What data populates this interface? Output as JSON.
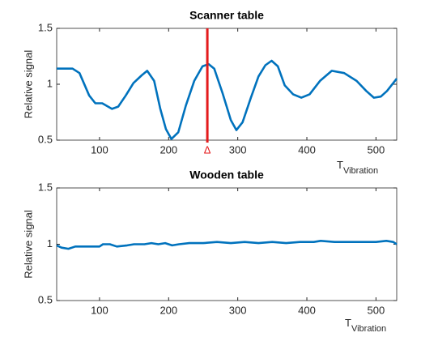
{
  "chart_data": [
    {
      "type": "line",
      "title": "Scanner table",
      "ylabel": "Relative signal",
      "xlabel": "T",
      "xlabel_sub": "Vibration",
      "xlim": [
        38,
        530
      ],
      "ylim": [
        0.5,
        1.5
      ],
      "xticks": [
        100,
        200,
        300,
        400,
        500
      ],
      "yticks": [
        0.5,
        1,
        1.5
      ],
      "color": "#0072bd",
      "x": [
        38,
        61,
        71,
        85,
        94,
        104,
        118,
        127,
        138,
        149,
        161,
        169,
        179,
        188,
        196,
        204,
        214,
        225,
        237,
        249,
        258,
        266,
        278,
        290,
        298,
        307,
        319,
        330,
        340,
        349,
        358,
        368,
        380,
        392,
        404,
        419,
        436,
        454,
        472,
        486,
        497,
        507,
        516,
        530
      ],
      "values": [
        1.14,
        1.14,
        1.1,
        0.9,
        0.83,
        0.83,
        0.78,
        0.8,
        0.9,
        1.01,
        1.08,
        1.12,
        1.03,
        0.78,
        0.6,
        0.51,
        0.57,
        0.81,
        1.03,
        1.16,
        1.18,
        1.14,
        0.92,
        0.68,
        0.59,
        0.66,
        0.88,
        1.07,
        1.17,
        1.21,
        1.16,
        0.99,
        0.91,
        0.88,
        0.91,
        1.03,
        1.12,
        1.1,
        1.03,
        0.94,
        0.88,
        0.89,
        0.94,
        1.05
      ],
      "annotations": [
        {
          "x": 256,
          "label": "Δ",
          "color": "#e41a1c"
        }
      ]
    },
    {
      "type": "line",
      "title": "Wooden table",
      "ylabel": "Relative signal",
      "xlabel": "T",
      "xlabel_sub": "Vibration",
      "xlim": [
        38,
        530
      ],
      "ylim": [
        0.5,
        1.5
      ],
      "xticks": [
        100,
        200,
        300,
        400,
        500
      ],
      "yticks": [
        0.5,
        1,
        1.5
      ],
      "color": "#0072bd",
      "x": [
        38,
        45,
        55,
        65,
        75,
        90,
        100,
        105,
        115,
        125,
        140,
        150,
        165,
        175,
        185,
        195,
        205,
        215,
        230,
        250,
        270,
        290,
        310,
        330,
        350,
        370,
        390,
        410,
        420,
        440,
        460,
        480,
        500,
        515,
        525,
        530
      ],
      "values": [
        0.99,
        0.97,
        0.96,
        0.98,
        0.98,
        0.98,
        0.98,
        1.0,
        1.0,
        0.98,
        0.99,
        1.0,
        1.0,
        1.01,
        1.0,
        1.01,
        0.99,
        1.0,
        1.01,
        1.01,
        1.02,
        1.01,
        1.02,
        1.01,
        1.02,
        1.01,
        1.02,
        1.02,
        1.03,
        1.02,
        1.02,
        1.02,
        1.02,
        1.03,
        1.02,
        1.0
      ]
    }
  ]
}
